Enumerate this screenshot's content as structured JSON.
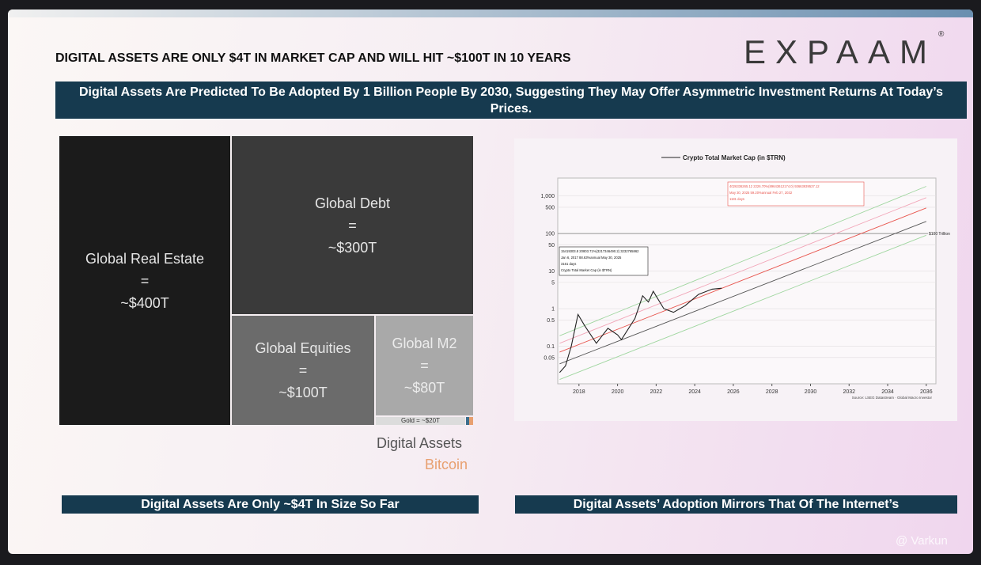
{
  "header": {
    "title": "DIGITAL ASSETS ARE ONLY $4T IN MARKET CAP AND WILL HIT ~$100T IN 10 YEARS",
    "logo": "EXPAAM",
    "logo_mark": "®"
  },
  "banner": "Digital Assets Are Predicted To Be Adopted By 1 Billion People By 2030, Suggesting They May Offer Asymmetric Investment Returns At Today’s Prices.",
  "treemap": {
    "cells": [
      {
        "lines": [
          "Global Real Estate",
          "=",
          "~$400T"
        ]
      },
      {
        "lines": [
          "Global Debt",
          "=",
          "~$300T"
        ]
      },
      {
        "lines": [
          "Global Equities",
          "=",
          "~$100T"
        ]
      },
      {
        "lines": [
          "Global M2",
          "=",
          "~$80T"
        ]
      }
    ],
    "gold": "Gold = ~$20T",
    "legend": [
      "Digital Assets",
      "Bitcoin"
    ]
  },
  "chart_data": {
    "type": "line",
    "legend": "Crypto Total Market Cap (in $TRN)",
    "log_y": true,
    "grid": true,
    "xlim": [
      2016.9,
      2036.5
    ],
    "xticks": [
      2018,
      2020,
      2022,
      2024,
      2026,
      2028,
      2030,
      2032,
      2034,
      2036
    ],
    "ylim": [
      0.01,
      3000
    ],
    "yticks": [
      {
        "value": 1000,
        "label": "1,000"
      },
      500,
      100,
      50,
      10,
      5,
      1,
      0.5,
      0.1,
      0.05
    ],
    "series": [
      {
        "name": "Crypto Total Market Cap (in $TRN)",
        "color": "#222222",
        "x": [
          2017.0,
          2017.3,
          2017.6,
          2017.95,
          2018.3,
          2018.9,
          2019.5,
          2020.0,
          2020.2,
          2020.9,
          2021.3,
          2021.6,
          2021.85,
          2022.4,
          2022.9,
          2023.5,
          2024.2,
          2024.9,
          2025.4
        ],
        "values": [
          0.02,
          0.03,
          0.1,
          0.7,
          0.35,
          0.12,
          0.3,
          0.2,
          0.15,
          0.55,
          2.2,
          1.5,
          2.9,
          1.0,
          0.8,
          1.2,
          2.4,
          3.3,
          3.5
        ]
      },
      {
        "color": "#9fd69f",
        "x": [
          2017.0,
          2036.0
        ],
        "values": [
          0.19,
          1800
        ]
      },
      {
        "color": "#f2a6b8",
        "x": [
          2017.0,
          2036.0
        ],
        "values": [
          0.12,
          900
        ]
      },
      {
        "color": "#e8554e",
        "x": [
          2017.0,
          2036.0
        ],
        "values": [
          0.07,
          480
        ]
      },
      {
        "color": "#555555",
        "x": [
          2017.0,
          2036.0
        ],
        "values": [
          0.034,
          210
        ]
      },
      {
        "color": "#9fd69f",
        "x": [
          2017.0,
          2036.0
        ],
        "values": [
          0.013,
          90
        ]
      }
    ],
    "hline": {
      "value": 100,
      "label": "$100 Trillion"
    },
    "annotations": [
      {
        "lines": [
          "15419303.8    20803.71%(3217346490.2)    3232765862",
          "Jan 6, 2017        88.63%annual        May 30, 2025",
          "3161 days",
          "Crypto Total Market Cap (in $TRN)"
        ]
      },
      {
        "lines": [
          "4026336265.12    2226.70%(89643612174.0)    93663939537.12",
          "May 30, 2025        59.20%annual        Feb 27, 2032",
          "1181 days"
        ]
      }
    ],
    "source": "Source: LSEG Datastream · Global Macro Investor"
  },
  "captions": [
    "Digital Assets Are Only ~$4T In Size So Far",
    "Digital Assets’ Adoption Mirrors That Of The Internet’s"
  ],
  "watermark": "@ Varkun"
}
